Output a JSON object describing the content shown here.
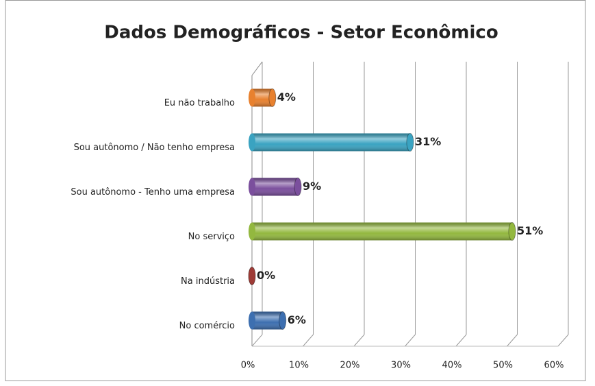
{
  "chart_data": {
    "type": "bar",
    "orientation": "horizontal",
    "title": "Dados Demográficos - Setor Econômico",
    "categories": [
      "Eu não trabalho",
      "Sou autônomo  / Não tenho empresa",
      "Sou autônomo  - Tenho uma empresa",
      "No serviço",
      "Na indústria",
      "No comércio"
    ],
    "values": [
      4,
      31,
      9,
      51,
      0,
      6
    ],
    "value_labels": [
      "4%",
      "31%",
      "9%",
      "51%",
      "0%",
      "6%"
    ],
    "colors": [
      "#e8812f",
      "#3aa3c1",
      "#7b4f9d",
      "#93b83f",
      "#9e3b36",
      "#3d6fb0"
    ],
    "xlim": [
      0,
      60
    ],
    "xticks": [
      {
        "value": 0,
        "label": "0%"
      },
      {
        "value": 10,
        "label": "10%"
      },
      {
        "value": 20,
        "label": "20%"
      },
      {
        "value": 30,
        "label": "30%"
      },
      {
        "value": 40,
        "label": "40%"
      },
      {
        "value": 50,
        "label": "50%"
      },
      {
        "value": 60,
        "label": "60%"
      }
    ],
    "grid": true
  }
}
